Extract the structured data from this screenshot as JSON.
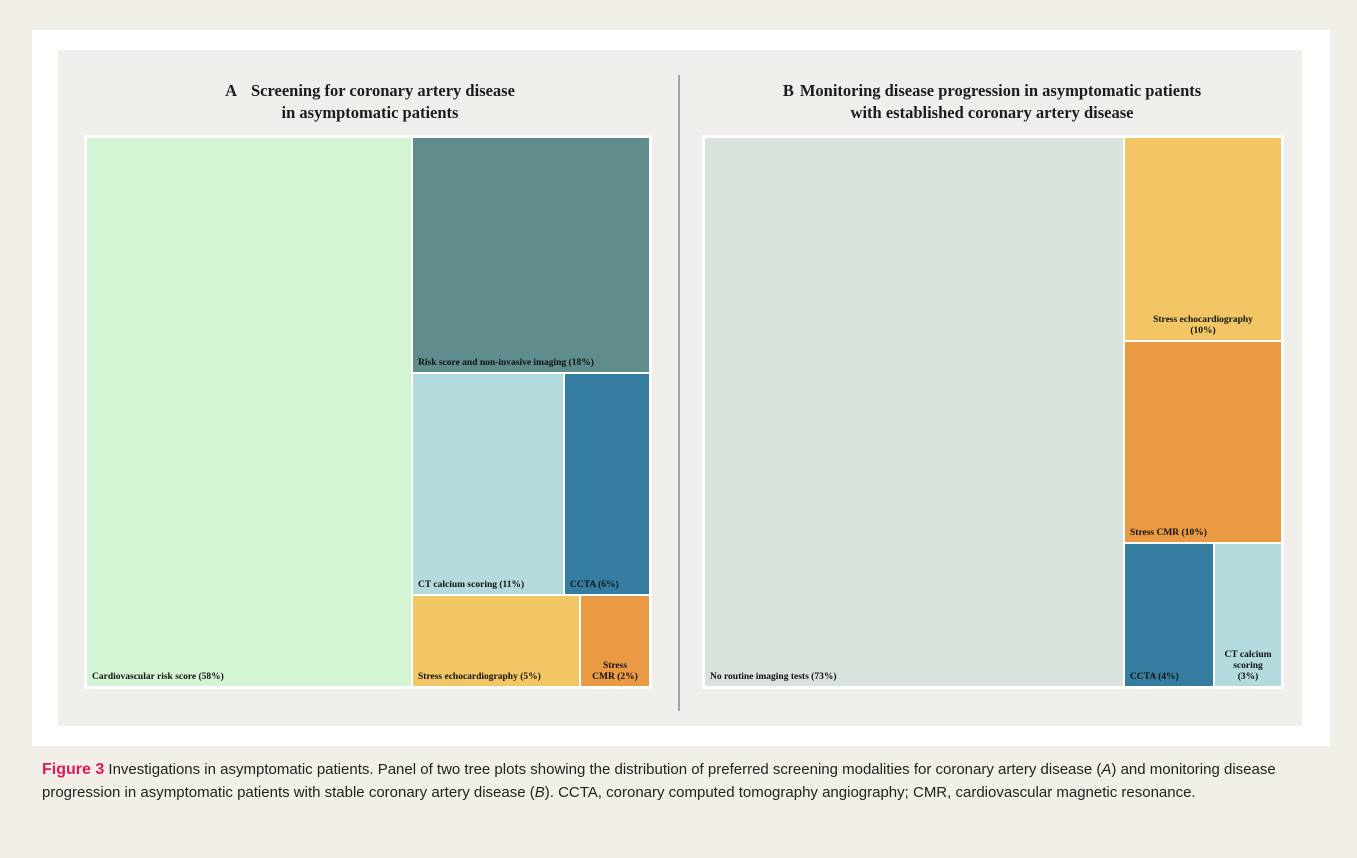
{
  "chart_data": [
    {
      "type": "treemap",
      "panel_letter": "A",
      "title_line1": "Screening for coronary artery disease",
      "title_line2": "in asymptomatic patients",
      "items": [
        {
          "label": "Cardiovascular risk score (58%)",
          "value": 58,
          "color": "#d3f5d4"
        },
        {
          "label": "Risk score and non-invasive imaging (18%)",
          "value": 18,
          "color": "#5f8c8c"
        },
        {
          "label": "CT calcium scoring (11%)",
          "value": 11,
          "color": "#b3dbde"
        },
        {
          "label": "CCTA (6%)",
          "value": 6,
          "color": "#347da1"
        },
        {
          "label": "Stress echocardiography (5%)",
          "value": 5,
          "color": "#f2c664"
        },
        {
          "label": "Stress\nCMR (2%)",
          "value": 2,
          "color": "#ea9a42"
        }
      ]
    },
    {
      "type": "treemap",
      "panel_letter": "B",
      "title_line1": "Monitoring disease progression in asymptomatic patients",
      "title_line2": "with established coronary artery disease",
      "items": [
        {
          "label": "No routine imaging tests  (73%)",
          "value": 73,
          "color": "#d9e3dc"
        },
        {
          "label": "Stress echocardiography\n(10%)",
          "value": 10,
          "color": "#f2c664"
        },
        {
          "label": "Stress  CMR (10%)",
          "value": 10,
          "color": "#ea9a42"
        },
        {
          "label": "CCTA (4%)",
          "value": 4,
          "color": "#347da1"
        },
        {
          "label": "CT calcium\nscoring\n(3%)",
          "value": 3,
          "color": "#b3dbde"
        }
      ]
    }
  ],
  "caption": {
    "figure_label": "Figure 3",
    "text_1": " Investigations in asymptomatic patients. Panel of two tree plots showing the distribution of preferred screening modalities for coronary artery disease (",
    "ref_a": "A",
    "text_2": ") and monitoring disease progression in asymptomatic patients with stable coronary artery disease (",
    "ref_b": "B",
    "text_3": "). CCTA, coronary computed tomography angiography; CMR, cardiovascular magnetic resonance."
  }
}
